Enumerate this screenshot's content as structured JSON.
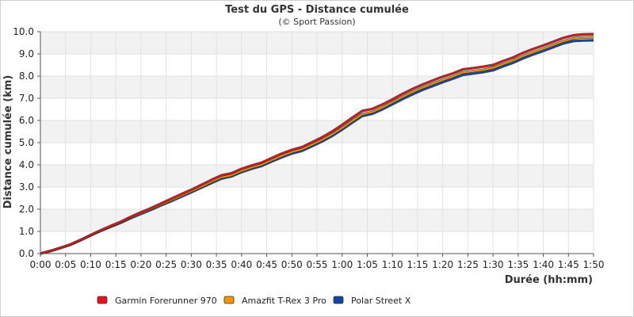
{
  "chart_data": {
    "type": "line",
    "title": "Test du GPS - Distance cumulée",
    "subtitle": "(© Sport Passion)",
    "xlabel": "Durée (hh:mm)",
    "ylabel": "Distance cumulée (km)",
    "xlim": [
      0,
      110
    ],
    "ylim": [
      0,
      10
    ],
    "x_tick_labels": [
      "0:00",
      "0:05",
      "0:10",
      "0:15",
      "0:20",
      "0:25",
      "0:30",
      "0:35",
      "0:40",
      "0:45",
      "0:50",
      "0:55",
      "1:00",
      "1:05",
      "1:10",
      "1:15",
      "1:20",
      "1:25",
      "1:30",
      "1:35",
      "1:40",
      "1:45",
      "1:50"
    ],
    "y_tick_labels": [
      "0.0",
      "1.0",
      "2.0",
      "3.0",
      "4.0",
      "5.0",
      "6.0",
      "7.0",
      "8.0",
      "9.0",
      "10.0"
    ],
    "grid": "horizontal alternating bands",
    "legend_position": "bottom",
    "x": [
      0,
      2,
      4,
      6,
      8,
      10,
      12,
      14,
      16,
      18,
      20,
      22,
      24,
      26,
      28,
      30,
      32,
      34,
      36,
      38,
      40,
      42,
      44,
      46,
      48,
      50,
      52,
      54,
      56,
      58,
      60,
      62,
      64,
      66,
      68,
      70,
      72,
      74,
      76,
      78,
      80,
      82,
      84,
      86,
      88,
      90,
      92,
      94,
      96,
      98,
      100,
      102,
      104,
      106,
      108,
      110
    ],
    "series": [
      {
        "name": "Garmin Forerunner 970",
        "color": "#e8101a",
        "values": [
          0,
          0.12,
          0.26,
          0.42,
          0.62,
          0.84,
          1.05,
          1.25,
          1.44,
          1.66,
          1.86,
          2.05,
          2.26,
          2.47,
          2.68,
          2.88,
          3.1,
          3.32,
          3.53,
          3.62,
          3.82,
          3.97,
          4.1,
          4.31,
          4.51,
          4.68,
          4.8,
          5.02,
          5.24,
          5.5,
          5.8,
          6.12,
          6.43,
          6.52,
          6.72,
          6.95,
          7.2,
          7.42,
          7.62,
          7.8,
          7.97,
          8.12,
          8.3,
          8.36,
          8.42,
          8.5,
          8.68,
          8.84,
          9.05,
          9.22,
          9.38,
          9.55,
          9.72,
          9.84,
          9.88,
          9.89
        ]
      },
      {
        "name": "Amazfit T-Rex 3 Pro",
        "color": "#f39500",
        "values": [
          0,
          0.12,
          0.26,
          0.41,
          0.61,
          0.83,
          1.04,
          1.23,
          1.42,
          1.63,
          1.82,
          2.01,
          2.21,
          2.41,
          2.61,
          2.81,
          3.02,
          3.24,
          3.44,
          3.53,
          3.73,
          3.88,
          4.01,
          4.21,
          4.41,
          4.58,
          4.7,
          4.91,
          5.12,
          5.37,
          5.66,
          5.98,
          6.28,
          6.38,
          6.58,
          6.82,
          7.06,
          7.28,
          7.48,
          7.65,
          7.82,
          7.98,
          8.16,
          8.22,
          8.28,
          8.37,
          8.54,
          8.7,
          8.9,
          9.07,
          9.23,
          9.4,
          9.57,
          9.7,
          9.74,
          9.75
        ]
      },
      {
        "name": "Polar Street X",
        "color": "#1244a8",
        "values": [
          0,
          0.11,
          0.25,
          0.4,
          0.6,
          0.82,
          1.02,
          1.21,
          1.39,
          1.6,
          1.79,
          1.97,
          2.17,
          2.36,
          2.56,
          2.76,
          2.97,
          3.18,
          3.38,
          3.48,
          3.67,
          3.82,
          3.95,
          4.15,
          4.34,
          4.51,
          4.63,
          4.84,
          5.05,
          5.3,
          5.59,
          5.9,
          6.2,
          6.3,
          6.5,
          6.73,
          6.96,
          7.18,
          7.38,
          7.55,
          7.72,
          7.88,
          8.05,
          8.11,
          8.17,
          8.26,
          8.44,
          8.6,
          8.8,
          8.97,
          9.13,
          9.3,
          9.47,
          9.58,
          9.6,
          9.61
        ]
      }
    ]
  }
}
